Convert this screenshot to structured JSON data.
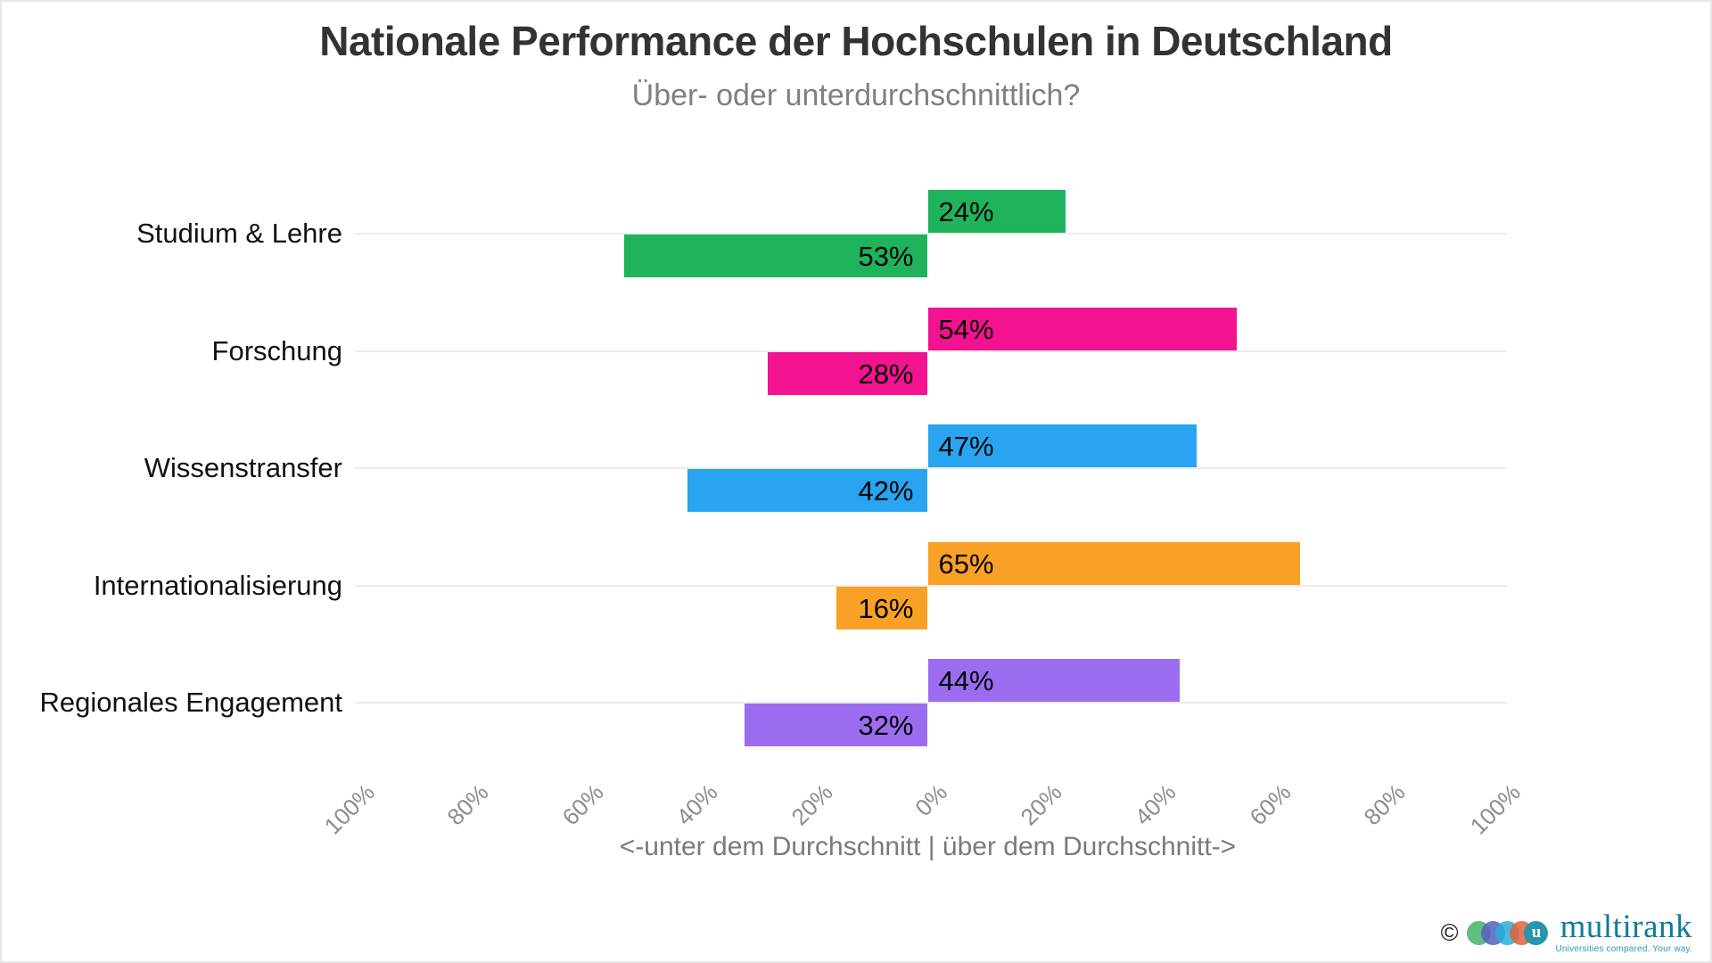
{
  "chart_data": {
    "type": "bar",
    "variant": "diverging-horizontal",
    "title": "Nationale Performance der Hochschulen in Deutschland",
    "subtitle": "Über- oder unterdurchschnittlich?",
    "xlabel": "<-unter dem Durchschnitt | über dem Durchschnitt->",
    "categories": [
      "Studium & Lehre",
      "Forschung",
      "Wissenstransfer",
      "Internationalisierung",
      "Regionales Engagement"
    ],
    "series": [
      {
        "name": "über dem Durchschnitt",
        "direction": "right",
        "values": [
          24,
          54,
          47,
          65,
          44
        ]
      },
      {
        "name": "unter dem Durchschnitt",
        "direction": "left",
        "values": [
          53,
          28,
          42,
          16,
          32
        ]
      }
    ],
    "value_labels": {
      "above": [
        "24%",
        "54%",
        "47%",
        "65%",
        "44%"
      ],
      "below": [
        "53%",
        "28%",
        "42%",
        "16%",
        "32%"
      ]
    },
    "bar_colors": [
      "#1fb35c",
      "#f3128f",
      "#28a4f0",
      "#f8a126",
      "#9c6cf0"
    ],
    "x_ticks": [
      "100%",
      "80%",
      "60%",
      "40%",
      "20%",
      "0%",
      "20%",
      "40%",
      "60%",
      "80%",
      "100%"
    ],
    "xlim": [
      -100,
      100
    ],
    "grid": true,
    "gridline_color": "#ececec",
    "legend": "none",
    "text_colors": {
      "title": "#333333",
      "subtitle": "#7f7f7f",
      "ticks": "#8c8c8c",
      "axis_title": "#7a7a7a",
      "bar_labels": "#000000",
      "category_labels": "#111111"
    }
  },
  "footer": {
    "copyright": "©",
    "brand": "multirank",
    "brand_mark_letter": "u",
    "tagline": "Universities compared. Your way."
  }
}
